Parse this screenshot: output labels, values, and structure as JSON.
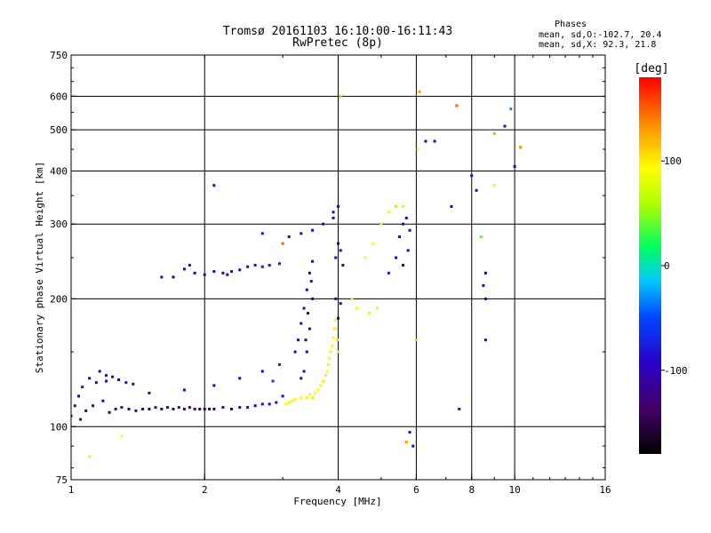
{
  "chart_data": {
    "type": "scatter",
    "title": "Tromsø 20161103 16:10:00-16:11:43",
    "subtitle": "RwPretec (8p)",
    "xlabel": "Frequency [MHz]",
    "ylabel": "Stationary phase Virtual Height [km]",
    "x_scale": "log",
    "y_scale": "log",
    "xlim": [
      1,
      16
    ],
    "ylim": [
      75,
      750
    ],
    "x_ticks": [
      1,
      2,
      4,
      6,
      8,
      10,
      16
    ],
    "x_tick_labels": [
      "1",
      "2",
      "4",
      "6",
      "8",
      "10",
      "16"
    ],
    "y_ticks": [
      75,
      100,
      200,
      300,
      400,
      500,
      600,
      750
    ],
    "y_tick_labels": [
      "75",
      "100",
      "200",
      "300",
      "400",
      "500",
      "600",
      "750"
    ],
    "grid": true,
    "stats": {
      "heading": "Phases",
      "line_o": "mean, sd,O:-102.7, 20.4",
      "line_x": "mean, sd,X:  92.3, 21.8"
    },
    "colorbar": {
      "label": "[deg]",
      "range": [
        -180,
        180
      ],
      "ticks": [
        100,
        0,
        -100
      ],
      "tick_labels": [
        "100",
        "0",
        "-100"
      ],
      "colormap": "rainbow"
    },
    "points": [
      [
        1.0,
        106,
        -110
      ],
      [
        1.02,
        112,
        -100
      ],
      [
        1.04,
        118,
        -95
      ],
      [
        1.05,
        104,
        -120
      ],
      [
        1.06,
        124,
        -90
      ],
      [
        1.08,
        109,
        -130
      ],
      [
        1.1,
        130,
        -100
      ],
      [
        1.12,
        112,
        -115
      ],
      [
        1.14,
        127,
        -105
      ],
      [
        1.16,
        135,
        -95
      ],
      [
        1.18,
        115,
        -125
      ],
      [
        1.2,
        132,
        -110
      ],
      [
        1.22,
        108,
        -140
      ],
      [
        1.24,
        131,
        -105
      ],
      [
        1.26,
        110,
        -120
      ],
      [
        1.28,
        129,
        -100
      ],
      [
        1.3,
        111,
        -130
      ],
      [
        1.33,
        127,
        -90
      ],
      [
        1.35,
        110,
        -115
      ],
      [
        1.38,
        126,
        -120
      ],
      [
        1.4,
        109,
        -125
      ],
      [
        1.45,
        110,
        -120
      ],
      [
        1.5,
        110,
        -130
      ],
      [
        1.55,
        111,
        -115
      ],
      [
        1.6,
        110,
        -125
      ],
      [
        1.65,
        111,
        -120
      ],
      [
        1.7,
        110,
        -135
      ],
      [
        1.75,
        111,
        -110
      ],
      [
        1.8,
        110,
        -120
      ],
      [
        1.85,
        111,
        -125
      ],
      [
        1.9,
        110,
        -118
      ],
      [
        1.95,
        110,
        -122
      ],
      [
        2.0,
        110,
        -130
      ],
      [
        2.05,
        110,
        -120
      ],
      [
        2.1,
        110,
        -115
      ],
      [
        2.2,
        111,
        -120
      ],
      [
        2.3,
        110,
        -125
      ],
      [
        2.4,
        111,
        -115
      ],
      [
        2.5,
        111,
        -110
      ],
      [
        2.6,
        112,
        -105
      ],
      [
        2.7,
        113,
        -100
      ],
      [
        2.8,
        113,
        -95
      ],
      [
        2.9,
        114,
        -90
      ],
      [
        1.2,
        128,
        -95
      ],
      [
        1.5,
        120,
        -100
      ],
      [
        1.8,
        122,
        -110
      ],
      [
        2.1,
        125,
        -105
      ],
      [
        2.4,
        130,
        -100
      ],
      [
        2.7,
        135,
        -90
      ],
      [
        2.85,
        128,
        -60
      ],
      [
        2.95,
        140,
        -70
      ],
      [
        3.0,
        118,
        -100
      ],
      [
        3.05,
        113,
        95
      ],
      [
        3.1,
        114,
        100
      ],
      [
        3.15,
        115,
        98
      ],
      [
        3.2,
        116,
        96
      ],
      [
        3.3,
        117,
        94
      ],
      [
        3.4,
        117,
        97
      ],
      [
        3.45,
        119,
        92
      ],
      [
        3.5,
        117,
        100
      ],
      [
        3.55,
        120,
        95
      ],
      [
        3.6,
        122,
        98
      ],
      [
        3.65,
        125,
        96
      ],
      [
        3.7,
        128,
        99
      ],
      [
        3.75,
        132,
        97
      ],
      [
        3.78,
        135,
        95
      ],
      [
        3.8,
        140,
        100
      ],
      [
        3.82,
        145,
        96
      ],
      [
        3.85,
        150,
        95
      ],
      [
        3.88,
        155,
        98
      ],
      [
        3.9,
        162,
        97
      ],
      [
        3.92,
        170,
        100
      ],
      [
        3.94,
        178,
        98
      ],
      [
        3.96,
        170,
        95
      ],
      [
        3.98,
        160,
        100
      ],
      [
        4.0,
        150,
        97
      ],
      [
        3.2,
        150,
        -100
      ],
      [
        3.25,
        160,
        -95
      ],
      [
        3.3,
        175,
        -105
      ],
      [
        3.35,
        190,
        -90
      ],
      [
        3.4,
        210,
        -100
      ],
      [
        3.45,
        230,
        -110
      ],
      [
        3.5,
        245,
        -95
      ],
      [
        3.5,
        200,
        -105
      ],
      [
        3.45,
        170,
        -100
      ],
      [
        3.4,
        150,
        -95
      ],
      [
        3.35,
        135,
        -100
      ],
      [
        3.3,
        130,
        -110
      ],
      [
        3.42,
        185,
        -120
      ],
      [
        3.48,
        220,
        -88
      ],
      [
        3.38,
        160,
        -112
      ],
      [
        3.95,
        250,
        -100
      ],
      [
        4.0,
        270,
        -105
      ],
      [
        4.05,
        260,
        -95
      ],
      [
        4.1,
        240,
        -110
      ],
      [
        3.9,
        320,
        -100
      ],
      [
        4.0,
        330,
        -95
      ],
      [
        3.95,
        200,
        -100
      ],
      [
        4.05,
        195,
        -105
      ],
      [
        4.0,
        180,
        -110
      ],
      [
        1.8,
        235,
        -120
      ],
      [
        1.9,
        230,
        -110
      ],
      [
        2.0,
        228,
        -115
      ],
      [
        2.1,
        232,
        -120
      ],
      [
        2.2,
        230,
        -110
      ],
      [
        2.3,
        232,
        -100
      ],
      [
        2.4,
        234,
        -105
      ],
      [
        2.5,
        238,
        -90
      ],
      [
        2.6,
        240,
        -80
      ],
      [
        2.7,
        238,
        -75
      ],
      [
        2.8,
        240,
        -85
      ],
      [
        2.95,
        242,
        -80
      ],
      [
        1.85,
        240,
        -100
      ],
      [
        2.25,
        228,
        -125
      ],
      [
        1.7,
        225,
        -130
      ],
      [
        3.1,
        280,
        -100
      ],
      [
        3.3,
        285,
        -105
      ],
      [
        3.5,
        290,
        -95
      ],
      [
        3.7,
        300,
        -110
      ],
      [
        3.9,
        310,
        -100
      ],
      [
        2.7,
        285,
        -90
      ],
      [
        4.6,
        250,
        95
      ],
      [
        4.8,
        270,
        90
      ],
      [
        5.0,
        300,
        85
      ],
      [
        5.2,
        320,
        100
      ],
      [
        5.4,
        330,
        110
      ],
      [
        5.5,
        280,
        -100
      ],
      [
        5.6,
        300,
        -110
      ],
      [
        5.7,
        310,
        -95
      ],
      [
        5.75,
        260,
        -100
      ],
      [
        5.6,
        240,
        -120
      ],
      [
        5.4,
        250,
        -90
      ],
      [
        5.6,
        330,
        100
      ],
      [
        5.8,
        290,
        -100
      ],
      [
        5.2,
        230,
        -80
      ],
      [
        4.3,
        200,
        100
      ],
      [
        4.4,
        190,
        95
      ],
      [
        4.7,
        185,
        98
      ],
      [
        4.9,
        190,
        97
      ],
      [
        5.7,
        92,
        130
      ],
      [
        5.8,
        97,
        -100
      ],
      [
        5.9,
        90,
        -95
      ],
      [
        6.0,
        160,
        110
      ],
      [
        6.1,
        615,
        130
      ],
      [
        6.05,
        450,
        95
      ],
      [
        6.3,
        470,
        -110
      ],
      [
        6.6,
        470,
        -105
      ],
      [
        7.5,
        110,
        -80
      ],
      [
        7.2,
        330,
        -100
      ],
      [
        8.4,
        280,
        40
      ],
      [
        8.5,
        215,
        -110
      ],
      [
        8.6,
        230,
        -105
      ],
      [
        8.6,
        200,
        -100
      ],
      [
        8.6,
        160,
        -110
      ],
      [
        9.0,
        370,
        100
      ],
      [
        8.2,
        360,
        -100
      ],
      [
        8.0,
        390,
        -95
      ],
      [
        9.5,
        510,
        -115
      ],
      [
        10.0,
        410,
        -110
      ],
      [
        9.0,
        490,
        125
      ],
      [
        9.8,
        560,
        -30
      ],
      [
        7.4,
        570,
        150
      ],
      [
        10.3,
        455,
        135
      ],
      [
        4.05,
        600,
        115
      ],
      [
        3.0,
        270,
        150
      ],
      [
        2.1,
        370,
        -100
      ],
      [
        1.6,
        225,
        -110
      ],
      [
        1.1,
        85,
        100
      ],
      [
        1.3,
        95,
        95
      ]
    ]
  }
}
